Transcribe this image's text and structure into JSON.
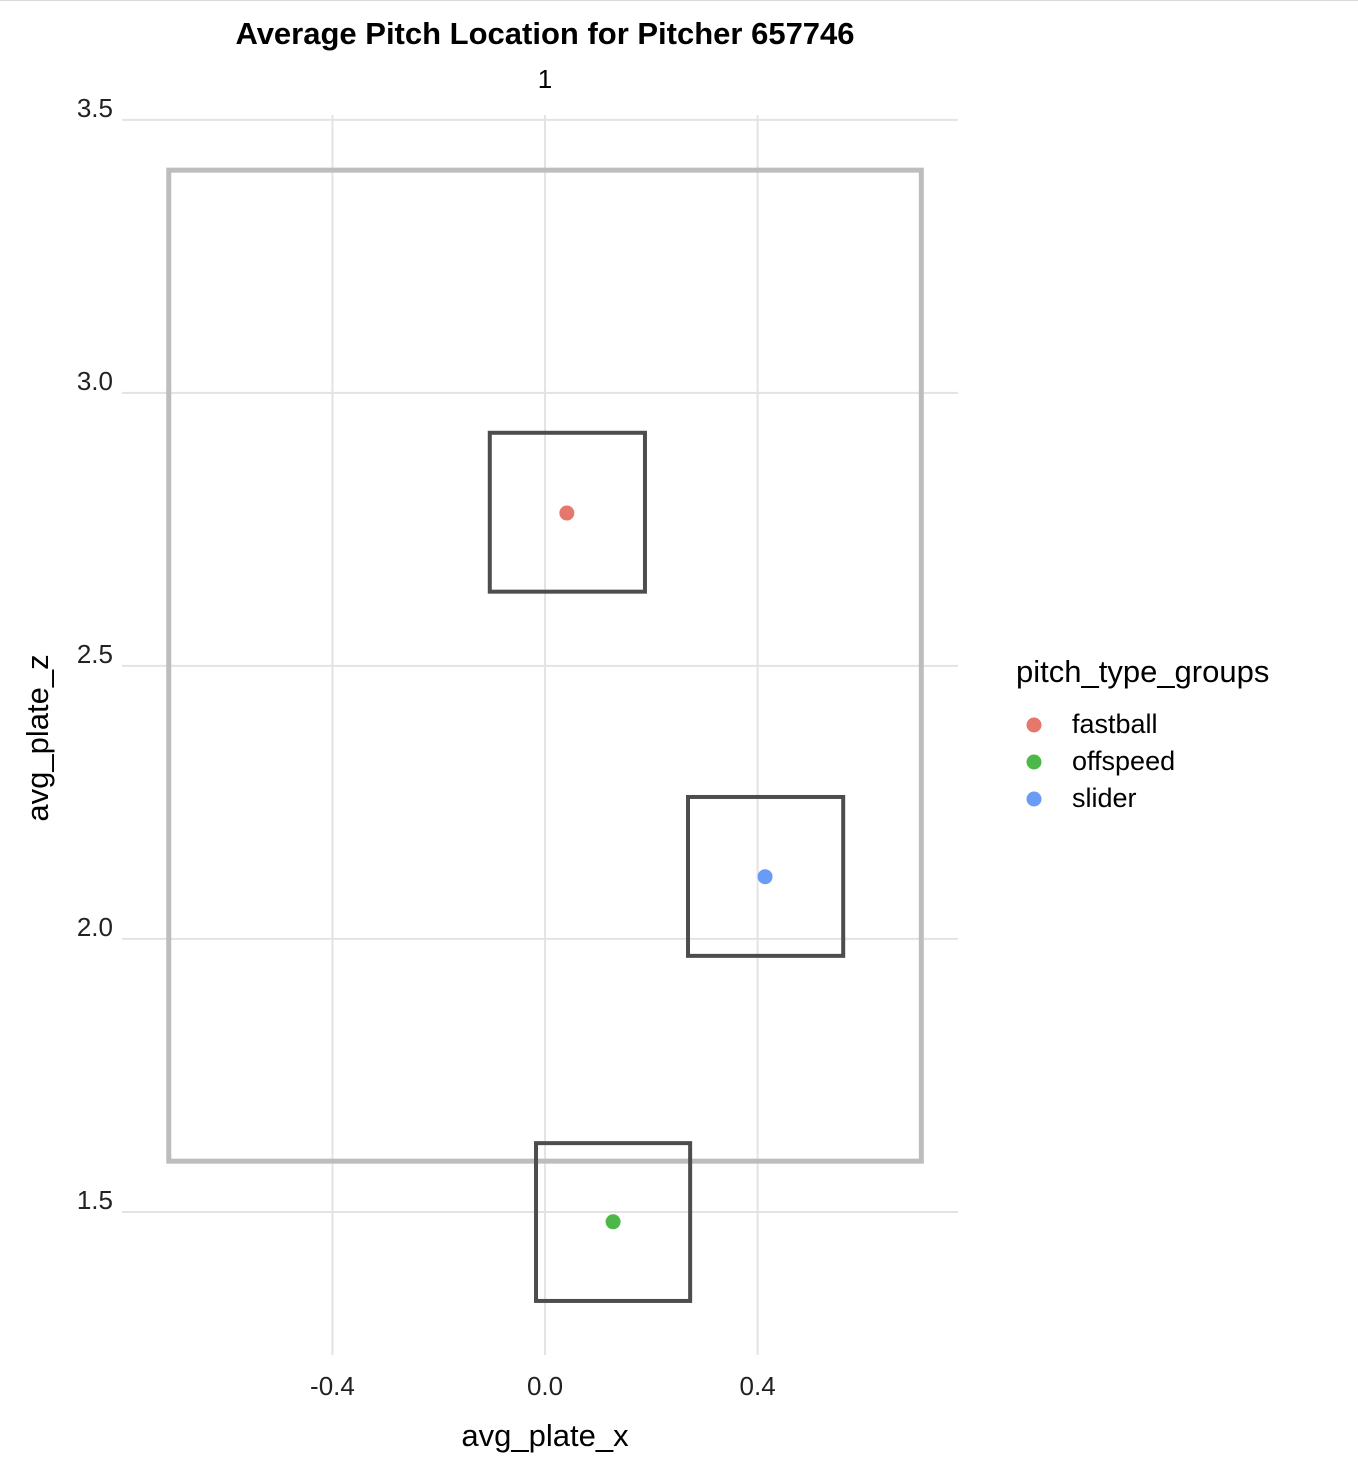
{
  "chart_data": {
    "type": "scatter",
    "title": "Average Pitch Location for Pitcher 657746",
    "subtitle": "1",
    "x_label": "avg_plate_x",
    "y_label": "avg_plate_z",
    "legend_title": "pitch_type_groups",
    "legend_position": "right",
    "grid": true,
    "xlim": [
      -0.796,
      0.777
    ],
    "ylim": [
      1.238,
      3.509
    ],
    "xticks": [
      -0.4,
      {
        "value": 0,
        "label": "0.0"
      },
      0.4
    ],
    "yticks": [
      1.5,
      {
        "value": 2,
        "label": "2.0"
      },
      2.5,
      {
        "value": 3,
        "label": "3.0"
      },
      3.5
    ],
    "strike_zone": {
      "xmin": -0.708,
      "xmax": 0.708,
      "ymin": 1.593,
      "ymax": 3.408,
      "color": "#bdbdbd"
    },
    "box_color": "#4d4d4d",
    "series": [
      {
        "name": "fastball",
        "color": "#e5776c",
        "x": [
          0.041
        ],
        "values": [
          2.78
        ],
        "box": {
          "xmin": -0.104,
          "xmax": 0.188,
          "ymin": 2.636,
          "ymax": 2.927
        }
      },
      {
        "name": "offspeed",
        "color": "#4cb848",
        "x": [
          0.128
        ],
        "values": [
          1.482
        ],
        "box": {
          "xmin": -0.017,
          "xmax": 0.273,
          "ymin": 1.337,
          "ymax": 1.626
        }
      },
      {
        "name": "slider",
        "color": "#6b9cf5",
        "x": [
          0.414
        ],
        "values": [
          2.114
        ],
        "box": {
          "xmin": 0.269,
          "xmax": 0.561,
          "ymin": 1.969,
          "ymax": 2.26
        }
      }
    ]
  }
}
